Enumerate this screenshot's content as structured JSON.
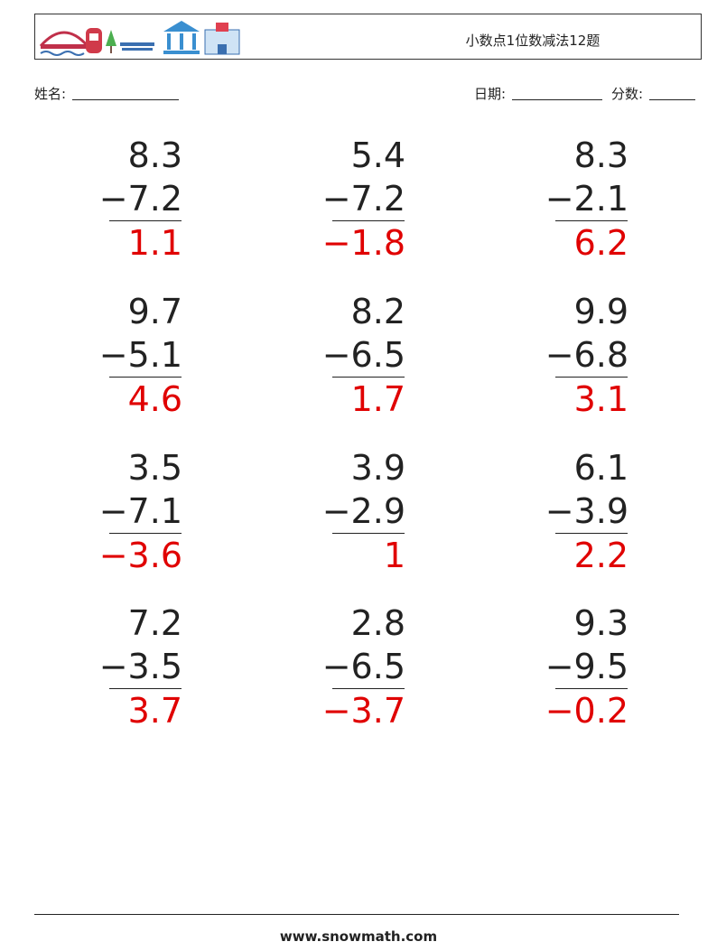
{
  "header": {
    "title": "小数点1位数减法12题"
  },
  "fields": {
    "name": "姓名:",
    "date": "日期:",
    "score": "分数:"
  },
  "problems": [
    {
      "top": "8.3",
      "bottom": "−7.2",
      "answer": "1.1"
    },
    {
      "top": "5.4",
      "bottom": "−7.2",
      "answer": "−1.8"
    },
    {
      "top": "8.3",
      "bottom": "−2.1",
      "answer": "6.2"
    },
    {
      "top": "9.7",
      "bottom": "−5.1",
      "answer": "4.6"
    },
    {
      "top": "8.2",
      "bottom": "−6.5",
      "answer": "1.7"
    },
    {
      "top": "9.9",
      "bottom": "−6.8",
      "answer": "3.1"
    },
    {
      "top": "3.5",
      "bottom": "−7.1",
      "answer": "−3.6"
    },
    {
      "top": "3.9",
      "bottom": "−2.9",
      "answer": "1"
    },
    {
      "top": "6.1",
      "bottom": "−3.9",
      "answer": "2.2"
    },
    {
      "top": "7.2",
      "bottom": "−3.5",
      "answer": "3.7"
    },
    {
      "top": "2.8",
      "bottom": "−6.5",
      "answer": "−3.7"
    },
    {
      "top": "9.3",
      "bottom": "−9.5",
      "answer": "−0.2"
    }
  ],
  "footer": {
    "site": "www.snowmath.com"
  }
}
